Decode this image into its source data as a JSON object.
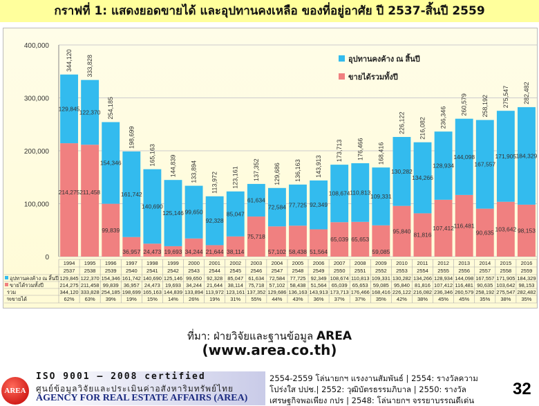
{
  "title": "กราฟที่ 1: แสดงยอดขายได้ และอุปทานคงเหลือ ของที่อยู่อาศัย ปี 2537-สิ้นปี 2559",
  "chart_data": {
    "type": "bar",
    "stacked": true,
    "categories": [
      "1994",
      "1995",
      "1996",
      "1997",
      "1998",
      "1999",
      "2000",
      "2001",
      "2002",
      "2003",
      "2004",
      "2005",
      "2006",
      "2007",
      "2008",
      "2009",
      "2010",
      "2011",
      "2012",
      "2013",
      "2014",
      "2015",
      "2016"
    ],
    "categories_be": [
      "2537",
      "2538",
      "2539",
      "2540",
      "2541",
      "2542",
      "2543",
      "2544",
      "2545",
      "2546",
      "2547",
      "2548",
      "2549",
      "2550",
      "2551",
      "2552",
      "2553",
      "2554",
      "2555",
      "2556",
      "2557",
      "2558",
      "2559"
    ],
    "series": [
      {
        "name": "ขายได้รวมทั้งปี",
        "color": "#f08080",
        "values": [
          214275,
          211458,
          99839,
          36957,
          24473,
          19693,
          34244,
          21644,
          38114,
          75718,
          57102,
          58438,
          51564,
          65039,
          65653,
          59085,
          95840,
          81816,
          107412,
          116481,
          90635,
          103642,
          98153
        ]
      },
      {
        "name": "อุปทานคงค้าง ณ สิ้นปี",
        "color": "#33bbee",
        "values": [
          129845,
          122370,
          154346,
          161742,
          140690,
          125146,
          99650,
          92328,
          85047,
          61634,
          72584,
          77725,
          92349,
          108674,
          110813,
          109331,
          130282,
          134266,
          128934,
          144098,
          167557,
          171905,
          184329
        ]
      }
    ],
    "totals": [
      344120,
      333828,
      254185,
      198699,
      165163,
      144839,
      133894,
      113972,
      123161,
      137352,
      129686,
      136163,
      143913,
      173713,
      176466,
      168416,
      226122,
      216082,
      236346,
      260579,
      258192,
      275547,
      282482
    ],
    "pct_sold": [
      "62%",
      "63%",
      "39%",
      "19%",
      "15%",
      "14%",
      "26%",
      "19%",
      "31%",
      "55%",
      "44%",
      "43%",
      "36%",
      "37%",
      "37%",
      "35%",
      "42%",
      "38%",
      "45%",
      "45%",
      "35%",
      "38%",
      "35%"
    ],
    "table_rows": {
      "supply": "อุปทานคงค้าง ณ สิ้นปี",
      "sales": "ขายได้รวมทั้งปี",
      "total": "รวม",
      "pct": "%ขายได้"
    },
    "yticks": [
      "0",
      "100,000",
      "200,000",
      "300,000",
      "400,000"
    ],
    "ylim": [
      0,
      400000
    ],
    "legend_placement": "top-right"
  },
  "source": {
    "label": "ที่มา:",
    "org": "ฝ่ายวิจัยและฐานข้อมูล",
    "brand": "AREA",
    "url": "(www.area.co.th)"
  },
  "footer": {
    "logo": "AREA",
    "iso": "ISO 9001 – 2008 certified",
    "thai_name": "ศูนย์ข้อมูลวิจัยและประเมินค่าอสังหาริมทรัพย์ไทย",
    "eng_name": "AGENCY FOR REAL ESTATE AFFAIRS (AREA)",
    "awards": [
      "2554-2559 โล่นายกฯ แรงงานสัมพันธ์ | 2554: รางวัลความ",
      "โปร่งใส ปปช.| 2552: วุฒิบัตรธรรมภิบาล | 2550: รางวัล",
      "เศรษฐกิจพอเพียง กปร | 2548: โล่นายกฯ จรรยาบรรณดีเด่น"
    ],
    "page": "32"
  }
}
